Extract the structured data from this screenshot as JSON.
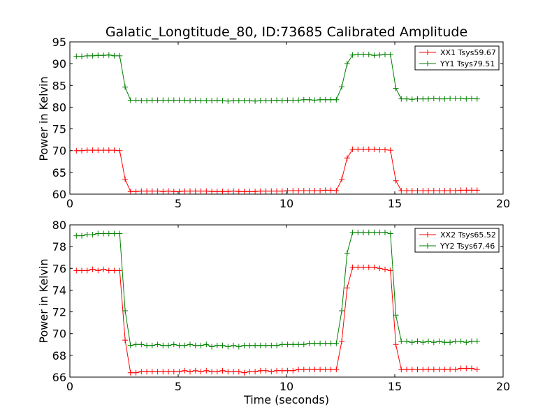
{
  "chart_data": [
    {
      "type": "line",
      "title": "Galatic_Longtitude_80, ID:73685 Calibrated Amplitude",
      "xlabel": "",
      "ylabel": "Power in Kelvin",
      "xlim": [
        0,
        20
      ],
      "ylim": [
        60,
        95
      ],
      "xticks": [
        0,
        5,
        10,
        15,
        20
      ],
      "yticks": [
        60,
        65,
        70,
        75,
        80,
        85,
        90,
        95
      ],
      "legend_position": "top-right",
      "grid": false,
      "x": [
        0.3,
        0.55,
        0.8,
        1.05,
        1.3,
        1.55,
        1.8,
        2.05,
        2.3,
        2.55,
        2.8,
        3.05,
        3.3,
        3.55,
        3.8,
        4.05,
        4.3,
        4.55,
        4.8,
        5.05,
        5.3,
        5.55,
        5.8,
        6.05,
        6.3,
        6.55,
        6.8,
        7.05,
        7.3,
        7.55,
        7.8,
        8.05,
        8.3,
        8.55,
        8.8,
        9.05,
        9.3,
        9.55,
        9.8,
        10.05,
        10.3,
        10.55,
        10.8,
        11.05,
        11.3,
        11.55,
        11.8,
        12.05,
        12.3,
        12.55,
        12.8,
        13.05,
        13.3,
        13.55,
        13.8,
        14.05,
        14.3,
        14.55,
        14.8,
        15.05,
        15.3,
        15.55,
        15.8,
        16.05,
        16.3,
        16.55,
        16.8,
        17.05,
        17.3,
        17.55,
        17.8,
        18.05,
        18.3,
        18.55,
        18.8
      ],
      "series": [
        {
          "name": "XX1 Tsys59.67",
          "color": "#ff0000",
          "values": [
            70.0,
            70.0,
            70.1,
            70.1,
            70.1,
            70.1,
            70.1,
            70.1,
            70.0,
            63.4,
            60.6,
            60.6,
            60.7,
            60.7,
            60.7,
            60.7,
            60.6,
            60.7,
            60.6,
            60.6,
            60.7,
            60.7,
            60.7,
            60.7,
            60.7,
            60.6,
            60.6,
            60.6,
            60.6,
            60.7,
            60.6,
            60.6,
            60.6,
            60.6,
            60.7,
            60.7,
            60.7,
            60.7,
            60.7,
            60.8,
            60.8,
            60.8,
            60.8,
            60.8,
            60.8,
            60.8,
            60.9,
            60.9,
            60.8,
            63.4,
            68.3,
            70.3,
            70.3,
            70.3,
            70.3,
            70.3,
            70.2,
            70.2,
            70.1,
            63.1,
            60.8,
            60.8,
            60.8,
            60.8,
            60.8,
            60.8,
            60.8,
            60.8,
            60.8,
            60.8,
            60.8,
            60.9,
            60.9,
            60.9,
            60.9
          ]
        },
        {
          "name": "YY1 Tsys79.51",
          "color": "#008000",
          "values": [
            91.7,
            91.7,
            91.8,
            91.8,
            91.9,
            91.9,
            92.0,
            91.8,
            91.8,
            84.6,
            81.6,
            81.6,
            81.5,
            81.5,
            81.6,
            81.6,
            81.6,
            81.6,
            81.6,
            81.6,
            81.6,
            81.5,
            81.6,
            81.5,
            81.5,
            81.5,
            81.6,
            81.5,
            81.4,
            81.5,
            81.5,
            81.5,
            81.5,
            81.4,
            81.5,
            81.5,
            81.5,
            81.6,
            81.5,
            81.6,
            81.6,
            81.6,
            81.7,
            81.7,
            81.6,
            81.7,
            81.7,
            81.7,
            81.7,
            84.7,
            90.0,
            92.0,
            92.1,
            92.1,
            92.1,
            91.9,
            92.0,
            92.1,
            92.1,
            84.3,
            81.9,
            81.9,
            81.8,
            81.9,
            81.9,
            81.9,
            82.0,
            81.9,
            81.9,
            82.0,
            82.0,
            82.0,
            81.9,
            82.0,
            81.9
          ]
        }
      ]
    },
    {
      "type": "line",
      "title": "",
      "xlabel": "Time (seconds)",
      "ylabel": "Power in Kelvin",
      "xlim": [
        0,
        20
      ],
      "ylim": [
        66,
        80
      ],
      "xticks": [
        0,
        5,
        10,
        15,
        20
      ],
      "yticks": [
        66,
        68,
        70,
        72,
        74,
        76,
        78,
        80
      ],
      "legend_position": "top-right",
      "grid": false,
      "x": [
        0.3,
        0.55,
        0.8,
        1.05,
        1.3,
        1.55,
        1.8,
        2.05,
        2.3,
        2.55,
        2.8,
        3.05,
        3.3,
        3.55,
        3.8,
        4.05,
        4.3,
        4.55,
        4.8,
        5.05,
        5.3,
        5.55,
        5.8,
        6.05,
        6.3,
        6.55,
        6.8,
        7.05,
        7.3,
        7.55,
        7.8,
        8.05,
        8.3,
        8.55,
        8.8,
        9.05,
        9.3,
        9.55,
        9.8,
        10.05,
        10.3,
        10.55,
        10.8,
        11.05,
        11.3,
        11.55,
        11.8,
        12.05,
        12.3,
        12.55,
        12.8,
        13.05,
        13.3,
        13.55,
        13.8,
        14.05,
        14.3,
        14.55,
        14.8,
        15.05,
        15.3,
        15.55,
        15.8,
        16.05,
        16.3,
        16.55,
        16.8,
        17.05,
        17.3,
        17.55,
        17.8,
        18.05,
        18.3,
        18.55,
        18.8
      ],
      "series": [
        {
          "name": "XX2 Tsys65.52",
          "color": "#ff0000",
          "values": [
            75.8,
            75.8,
            75.8,
            75.9,
            75.8,
            75.9,
            75.8,
            75.8,
            75.8,
            69.4,
            66.4,
            66.4,
            66.5,
            66.5,
            66.5,
            66.5,
            66.5,
            66.5,
            66.5,
            66.5,
            66.6,
            66.5,
            66.6,
            66.5,
            66.6,
            66.5,
            66.5,
            66.6,
            66.5,
            66.5,
            66.5,
            66.4,
            66.5,
            66.5,
            66.6,
            66.6,
            66.5,
            66.6,
            66.6,
            66.6,
            66.6,
            66.7,
            66.7,
            66.7,
            66.7,
            66.7,
            66.7,
            66.7,
            66.7,
            69.3,
            74.2,
            76.1,
            76.1,
            76.1,
            76.1,
            76.1,
            76.0,
            75.9,
            75.8,
            69.0,
            66.7,
            66.7,
            66.7,
            66.7,
            66.7,
            66.7,
            66.7,
            66.7,
            66.7,
            66.7,
            66.7,
            66.8,
            66.8,
            66.8,
            66.7
          ]
        },
        {
          "name": "YY2 Tsys67.46",
          "color": "#008000",
          "values": [
            79.0,
            79.0,
            79.1,
            79.1,
            79.2,
            79.2,
            79.2,
            79.2,
            79.2,
            72.1,
            68.9,
            69.0,
            69.0,
            68.9,
            68.9,
            69.0,
            68.9,
            68.9,
            69.0,
            68.9,
            68.9,
            69.0,
            68.9,
            68.9,
            69.0,
            68.8,
            68.9,
            68.9,
            68.8,
            68.9,
            68.8,
            68.9,
            68.9,
            68.9,
            68.9,
            68.9,
            68.9,
            68.9,
            69.0,
            69.0,
            69.0,
            69.0,
            69.0,
            69.1,
            69.1,
            69.1,
            69.1,
            69.1,
            69.1,
            72.1,
            77.4,
            79.3,
            79.3,
            79.3,
            79.3,
            79.3,
            79.3,
            79.3,
            79.2,
            71.7,
            69.3,
            69.3,
            69.2,
            69.3,
            69.2,
            69.3,
            69.2,
            69.3,
            69.2,
            69.2,
            69.3,
            69.3,
            69.2,
            69.3,
            69.3
          ]
        }
      ]
    }
  ]
}
